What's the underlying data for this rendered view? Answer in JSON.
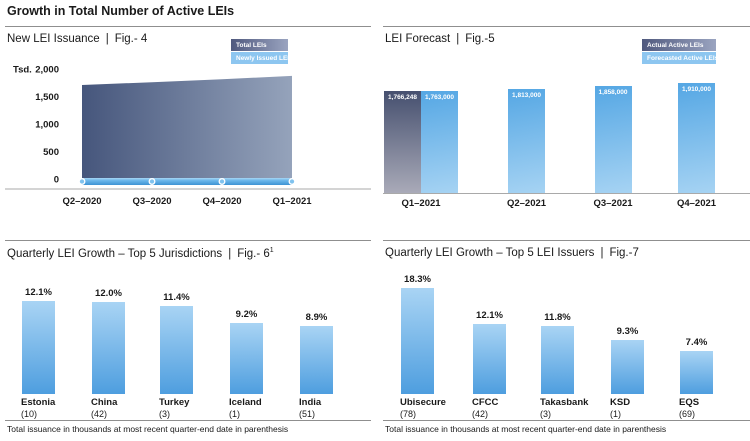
{
  "page": {
    "title": "Growth in Total Number of Active LEIs",
    "footnote": "Total issuance in thousands at most recent quarter-end date in parenthesis"
  },
  "colors": {
    "dark_slate": "#4f5a7d",
    "dark_slate_light_end": "#9aa4c0",
    "light_blue": "#59aae6",
    "light_blue_pale": "#a6d3f3",
    "text": "#1a1a1a",
    "rule": "#8f8f8f"
  },
  "panels": {
    "separator": "|",
    "fig4": {
      "title": "New LEI Issuance",
      "fig": "Fig.- 4",
      "y_unit": "Tsd.",
      "legend": {
        "dark": "Total LEIs",
        "light": "Newly Issued LEIs"
      }
    },
    "fig5": {
      "title": "LEI Forecast",
      "fig": "Fig.-5",
      "legend": {
        "dark": "Actual Active LEIs",
        "light": "Forecasted Active LEIs"
      }
    },
    "fig6": {
      "title": "Quarterly LEI Growth – Top 5 Jurisdictions",
      "fig": "Fig.- 6",
      "fig_sup": "1"
    },
    "fig7": {
      "title": "Quarterly LEI Growth – Top 5 LEI Issuers",
      "fig": "Fig.-7"
    }
  },
  "chart_data": [
    {
      "id": "fig4",
      "type": "area",
      "title": "New LEI Issuance | Fig.- 4",
      "x": [
        "Q2–2020",
        "Q3–2020",
        "Q4–2020",
        "Q1–2021"
      ],
      "series": [
        {
          "name": "Total LEIs",
          "values": [
            1710,
            1760,
            1815,
            1875
          ],
          "estimated_from_pixels": true
        },
        {
          "name": "Newly Issued LEIs",
          "values": [
            45,
            50,
            55,
            60
          ],
          "estimated_from_pixels": true
        }
      ],
      "ylabel": "Tsd.",
      "ylim": [
        0,
        2000
      ],
      "y_ticks": [
        2000,
        1500,
        1000,
        500,
        0
      ],
      "y_tick_labels": [
        "2,000",
        "1,500",
        "1,000",
        "500",
        "0"
      ],
      "legend_position": "top-right",
      "grid": false
    },
    {
      "id": "fig5",
      "type": "bar",
      "title": "LEI Forecast | Fig.-5",
      "categories": [
        "Q1–2021",
        "Q2–2021",
        "Q3–2021",
        "Q4–2021"
      ],
      "series": [
        {
          "name": "Actual Active LEIs",
          "role": "actual",
          "values": [
            1766248,
            null,
            null,
            null
          ],
          "labels": [
            "1,766,248",
            null,
            null,
            null
          ]
        },
        {
          "name": "Forecasted Active LEIs",
          "role": "forecast",
          "values": [
            1763000,
            1813000,
            1858000,
            1910000
          ],
          "labels": [
            "1,763,000",
            "1,813,000",
            "1,858,000",
            "1,910,000"
          ]
        }
      ],
      "legend_position": "top-right",
      "data_labels": "inside-top",
      "grid": false
    },
    {
      "id": "fig6",
      "type": "bar",
      "title": "Quarterly LEI Growth – Top 5 Jurisdictions | Fig.- 6¹",
      "categories": [
        "Estonia",
        "China",
        "Turkey",
        "Iceland",
        "India"
      ],
      "values": [
        12.1,
        12.0,
        11.4,
        9.2,
        8.9
      ],
      "value_labels": [
        "12.1%",
        "12.0%",
        "11.4%",
        "9.2%",
        "8.9%"
      ],
      "category_sublabels": [
        "(10)",
        "(42)",
        "(3)",
        "(1)",
        "(51)"
      ],
      "grid": false
    },
    {
      "id": "fig7",
      "type": "bar",
      "title": "Quarterly LEI Growth – Top 5 LEI Issuers | Fig.-7",
      "categories": [
        "Ubisecure",
        "CFCC",
        "Takasbank",
        "KSD",
        "EQS"
      ],
      "values": [
        18.3,
        12.1,
        11.8,
        9.3,
        7.4
      ],
      "value_labels": [
        "18.3%",
        "12.1%",
        "11.8%",
        "9.3%",
        "7.4%"
      ],
      "category_sublabels": [
        "(78)",
        "(42)",
        "(3)",
        "(1)",
        "(69)"
      ],
      "grid": false
    }
  ]
}
